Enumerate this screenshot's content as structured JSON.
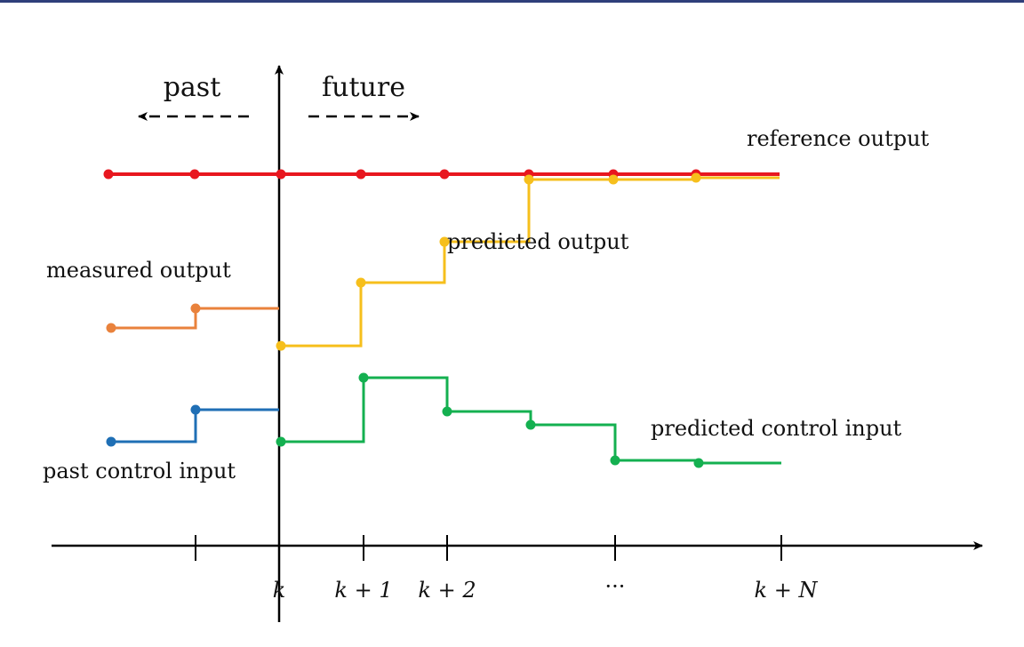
{
  "colors": {
    "top_bar": "#2f3f7a",
    "axis": "#000000",
    "reference": "#e8171f",
    "predicted_output": "#f6bf1c",
    "measured_output": "#e9823c",
    "past_control": "#1f6fb5",
    "predicted_control": "#14b050"
  },
  "labels": {
    "past": "past",
    "future": "future",
    "reference_output": "reference output",
    "predicted_output": "predicted output",
    "measured_output": "measured output",
    "past_control_input": "past control input",
    "predicted_control_input": "predicted control input"
  },
  "ticks": {
    "k": "k",
    "k1": "k + 1",
    "k2": "k + 2",
    "dots": "···",
    "kN": "k + N"
  },
  "series": {
    "reference_output": {
      "y": [
        1,
        1,
        1,
        1,
        1,
        1,
        1,
        1
      ]
    },
    "measured_output": {
      "y": [
        0.43,
        0.5
      ]
    },
    "predicted_output": {
      "y": [
        0.55,
        0.72,
        0.83,
        0.98,
        0.98,
        0.98
      ]
    },
    "past_control_input": {
      "y": [
        0.3,
        0.42
      ]
    },
    "predicted_control_input": {
      "y": [
        0.33,
        0.56,
        0.45,
        0.4,
        0.34,
        0.34
      ]
    }
  }
}
